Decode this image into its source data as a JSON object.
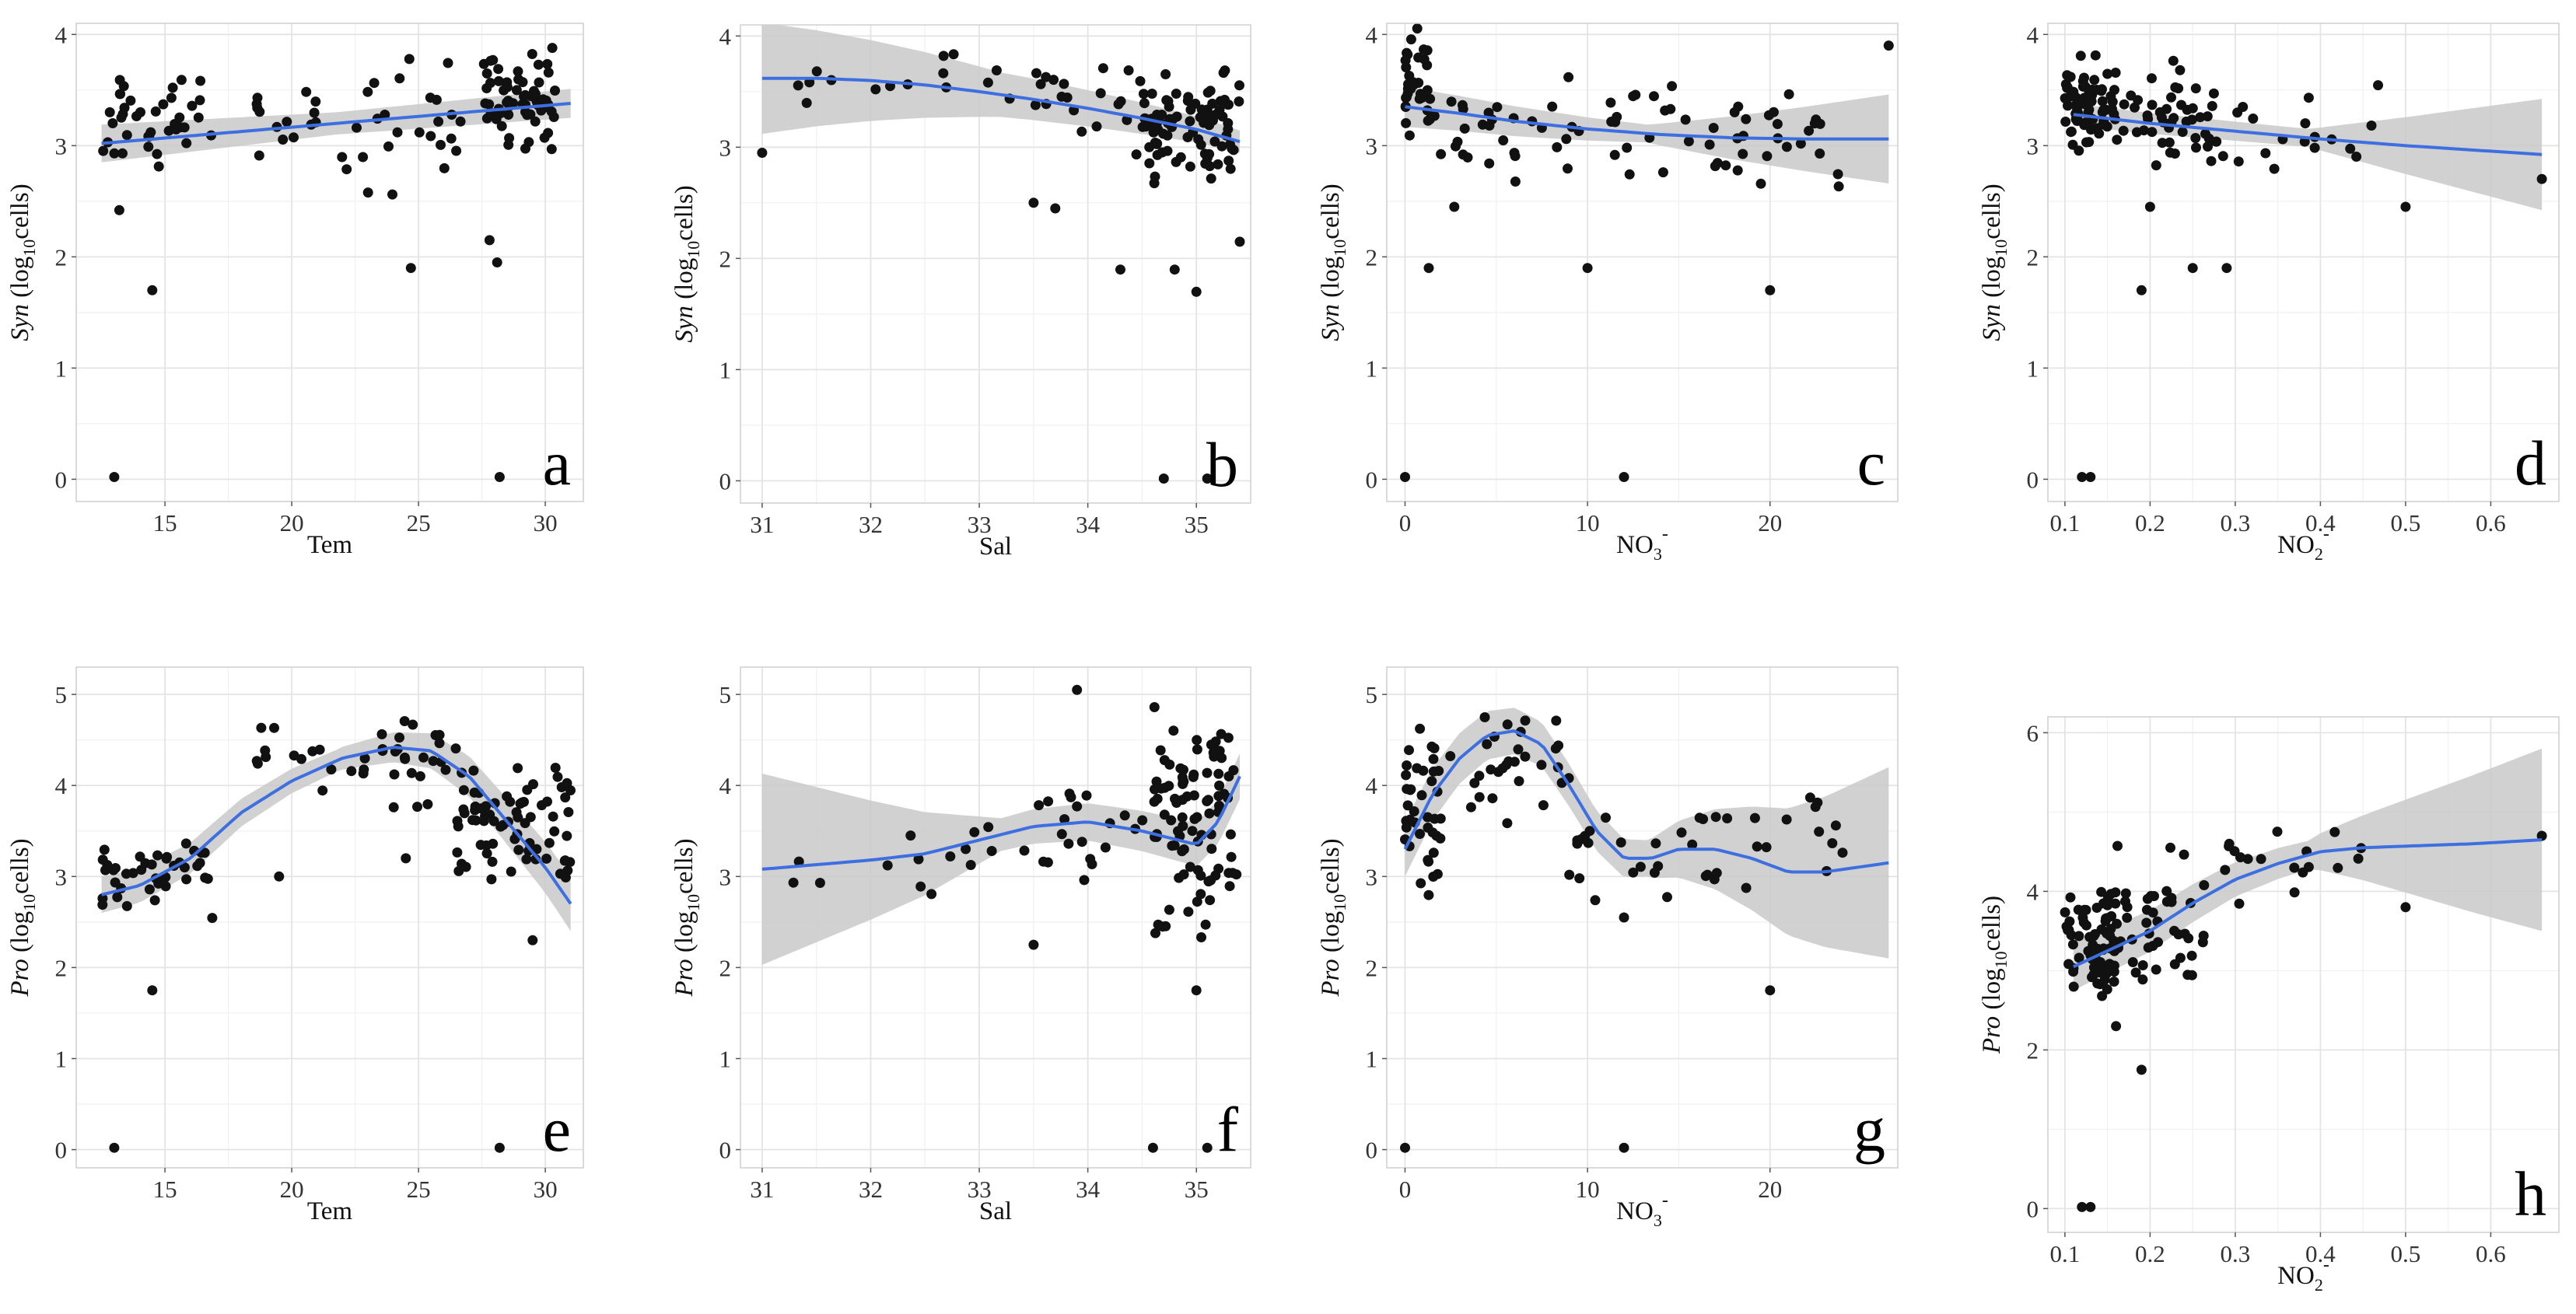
{
  "chart_data": [
    {
      "panel": "a",
      "type": "scatter",
      "letter": "a",
      "xlabel": "Tem",
      "ylabel_main": "Syn",
      "ylabel_rest": "(log",
      "ylabel_sub": "10",
      "ylabel_end": "cells)",
      "xlim": [
        11.5,
        31.5
      ],
      "ylim": [
        -0.2,
        4.1
      ],
      "xticks": [
        15,
        20,
        25,
        30
      ],
      "yticks": [
        0,
        1,
        2,
        3,
        4
      ],
      "fit_x": [
        12.5,
        31
      ],
      "fit_y": [
        3.02,
        3.38
      ],
      "band": [
        0.17,
        0.1,
        0.13
      ],
      "outliers": [
        [
          13,
          0.02
        ],
        [
          14.5,
          1.7
        ],
        [
          24.7,
          1.9
        ],
        [
          27.8,
          2.15
        ],
        [
          28.2,
          0.02
        ],
        [
          13.2,
          2.42
        ],
        [
          28.1,
          1.95
        ]
      ],
      "clusters": [
        [
          12.5,
          17,
          3.25,
          0.3,
          40
        ],
        [
          18.5,
          27,
          3.15,
          0.35,
          40
        ],
        [
          27.5,
          30.5,
          3.4,
          0.3,
          70
        ]
      ]
    },
    {
      "panel": "b",
      "type": "scatter",
      "letter": "b",
      "xlabel": "Sal",
      "ylabel_main": "Syn",
      "ylabel_rest": "(log",
      "ylabel_sub": "10",
      "ylabel_end": "cells)",
      "xlim": [
        30.8,
        35.5
      ],
      "ylim": [
        -0.2,
        4.1
      ],
      "xticks": [
        31,
        32,
        33,
        34,
        35
      ],
      "yticks": [
        0,
        1,
        2,
        3,
        4
      ],
      "fit_x": [
        31,
        31.5,
        32,
        32.5,
        33,
        33.5,
        34,
        34.5,
        35,
        35.4
      ],
      "fit_y": [
        3.62,
        3.62,
        3.6,
        3.56,
        3.5,
        3.43,
        3.35,
        3.26,
        3.16,
        3.05
      ],
      "band": [
        0.5,
        0.2,
        0.1,
        0.15
      ],
      "outliers": [
        [
          31,
          2.95
        ],
        [
          34.3,
          1.9
        ],
        [
          34.8,
          1.9
        ],
        [
          35,
          1.7
        ],
        [
          34.7,
          0.02
        ],
        [
          35.1,
          0.02
        ],
        [
          33.5,
          2.5
        ],
        [
          33.7,
          2.45
        ],
        [
          35.4,
          2.15
        ]
      ],
      "clusters": [
        [
          31.1,
          33.5,
          3.6,
          0.2,
          15
        ],
        [
          33.5,
          34.5,
          3.4,
          0.3,
          20
        ],
        [
          34.5,
          35.4,
          3.2,
          0.35,
          90
        ]
      ]
    },
    {
      "panel": "c",
      "type": "scatter",
      "letter": "c",
      "xlabel": "NO",
      "xlabel_sub": "3",
      "xlabel_sup": "-",
      "ylabel_main": "Syn",
      "ylabel_rest": "(log",
      "ylabel_sub": "10",
      "ylabel_end": "cells)",
      "xlim": [
        -1,
        27
      ],
      "ylim": [
        -0.2,
        4.1
      ],
      "xticks": [
        0,
        10,
        20
      ],
      "yticks": [
        0,
        1,
        2,
        3,
        4
      ],
      "fit_x": [
        0,
        3,
        6,
        10,
        14,
        18,
        22,
        26.5
      ],
      "fit_y": [
        3.35,
        3.29,
        3.22,
        3.15,
        3.1,
        3.07,
        3.06,
        3.06
      ],
      "band": [
        0.18,
        0.08,
        0.4
      ],
      "outliers": [
        [
          0,
          0.02
        ],
        [
          12,
          0.02
        ],
        [
          1.3,
          1.9
        ],
        [
          10,
          1.9
        ],
        [
          20,
          1.7
        ],
        [
          2.7,
          2.45
        ],
        [
          26.5,
          3.9
        ]
      ],
      "clusters": [
        [
          0,
          1.5,
          3.55,
          0.3,
          35
        ],
        [
          1.5,
          10,
          3.2,
          0.35,
          30
        ],
        [
          10,
          24,
          3.15,
          0.35,
          45
        ]
      ]
    },
    {
      "panel": "d",
      "type": "scatter",
      "letter": "d",
      "xlabel": "NO",
      "xlabel_sub": "2",
      "xlabel_sup": "-",
      "ylabel_main": "Syn",
      "ylabel_rest": "(log",
      "ylabel_sub": "10",
      "ylabel_end": "cells)",
      "xlim": [
        0.08,
        0.68
      ],
      "ylim": [
        -0.2,
        4.1
      ],
      "xticks": [
        0.1,
        0.2,
        0.3,
        0.4,
        0.5,
        0.6
      ],
      "yticks": [
        0,
        1,
        2,
        3,
        4
      ],
      "fit_x": [
        0.11,
        0.2,
        0.3,
        0.4,
        0.5,
        0.66
      ],
      "fit_y": [
        3.28,
        3.2,
        3.13,
        3.06,
        3.0,
        2.92
      ],
      "band": [
        0.1,
        0.08,
        0.5
      ],
      "outliers": [
        [
          0.12,
          0.02
        ],
        [
          0.13,
          0.02
        ],
        [
          0.19,
          1.7
        ],
        [
          0.25,
          1.9
        ],
        [
          0.29,
          1.9
        ],
        [
          0.66,
          2.7
        ],
        [
          0.5,
          2.45
        ],
        [
          0.2,
          2.45
        ]
      ],
      "clusters": [
        [
          0.1,
          0.16,
          3.35,
          0.3,
          70
        ],
        [
          0.16,
          0.28,
          3.25,
          0.35,
          50
        ],
        [
          0.28,
          0.48,
          3.1,
          0.35,
          18
        ]
      ]
    },
    {
      "panel": "e",
      "type": "scatter",
      "letter": "e",
      "xlabel": "Tem",
      "ylabel_main": "Pro",
      "ylabel_rest": "(log",
      "ylabel_sub": "10",
      "ylabel_end": "cells)",
      "xlim": [
        11.5,
        31.5
      ],
      "ylim": [
        -0.2,
        5.3
      ],
      "xticks": [
        15,
        20,
        25,
        30
      ],
      "yticks": [
        0,
        1,
        2,
        3,
        4,
        5
      ],
      "fit_x": [
        12.5,
        14,
        16,
        18,
        20,
        22,
        24,
        25.5,
        27,
        28.5,
        30,
        31
      ],
      "fit_y": [
        2.8,
        2.9,
        3.2,
        3.7,
        4.05,
        4.3,
        4.42,
        4.38,
        4.1,
        3.6,
        3.1,
        2.7
      ],
      "band": [
        0.2,
        0.12,
        0.3
      ],
      "outliers": [
        [
          13,
          0.02
        ],
        [
          28.2,
          0.02
        ],
        [
          14.5,
          1.75
        ],
        [
          29.5,
          2.3
        ],
        [
          24.5,
          3.2
        ],
        [
          19.5,
          3.0
        ]
      ],
      "clusters": [
        [
          12.5,
          17,
          3.0,
          0.3,
          40
        ],
        [
          18.5,
          26.5,
          4.3,
          0.35,
          40
        ],
        [
          26.5,
          31,
          3.6,
          0.5,
          75
        ]
      ]
    },
    {
      "panel": "f",
      "type": "scatter",
      "letter": "f",
      "xlabel": "Sal",
      "ylabel_main": "Pro",
      "ylabel_rest": "(log",
      "ylabel_sub": "10",
      "ylabel_end": "cells)",
      "xlim": [
        30.8,
        35.5
      ],
      "ylim": [
        -0.2,
        5.3
      ],
      "xticks": [
        31,
        32,
        33,
        34,
        35
      ],
      "yticks": [
        0,
        1,
        2,
        3,
        4,
        5
      ],
      "fit_x": [
        31,
        31.5,
        32,
        32.5,
        33,
        33.5,
        34,
        34.5,
        35,
        35.2,
        35.4
      ],
      "fit_y": [
        3.08,
        3.13,
        3.18,
        3.25,
        3.4,
        3.55,
        3.6,
        3.5,
        3.35,
        3.6,
        4.1
      ],
      "band": [
        1.05,
        0.18,
        0.25
      ],
      "outliers": [
        [
          34.6,
          0.02
        ],
        [
          35.1,
          0.02
        ],
        [
          35,
          1.75
        ],
        [
          33.5,
          2.25
        ],
        [
          33.9,
          5.05
        ]
      ],
      "clusters": [
        [
          31.1,
          33.5,
          3.3,
          0.3,
          15
        ],
        [
          33.5,
          34.6,
          3.5,
          0.35,
          20
        ],
        [
          34.6,
          35.4,
          3.6,
          0.8,
          95
        ]
      ]
    },
    {
      "panel": "g",
      "type": "scatter",
      "letter": "g",
      "xlabel": "NO",
      "xlabel_sub": "3",
      "xlabel_sup": "-",
      "ylabel_main": "Pro",
      "ylabel_rest": "(log",
      "ylabel_sub": "10",
      "ylabel_end": "cells)",
      "xlim": [
        -1,
        27
      ],
      "ylim": [
        -0.2,
        5.3
      ],
      "xticks": [
        0,
        10,
        20
      ],
      "yticks": [
        0,
        1,
        2,
        3,
        4,
        5
      ],
      "fit_x": [
        0,
        1.5,
        3,
        4.5,
        6,
        7.5,
        9,
        10.5,
        12,
        13.5,
        15,
        17,
        19,
        21,
        23,
        26.5
      ],
      "fit_y": [
        3.3,
        3.9,
        4.3,
        4.55,
        4.6,
        4.45,
        4.0,
        3.5,
        3.2,
        3.2,
        3.3,
        3.3,
        3.2,
        3.05,
        3.05,
        3.15
      ],
      "band": [
        0.3,
        0.2,
        1.05
      ],
      "outliers": [
        [
          0,
          0.02
        ],
        [
          12,
          0.02
        ],
        [
          20,
          1.75
        ],
        [
          12,
          2.55
        ]
      ],
      "clusters": [
        [
          0,
          2,
          3.6,
          0.6,
          40
        ],
        [
          2,
          9,
          4.3,
          0.45,
          30
        ],
        [
          9,
          24,
          3.3,
          0.45,
          40
        ]
      ]
    },
    {
      "panel": "h",
      "type": "scatter",
      "letter": "h",
      "xlabel": "NO",
      "xlabel_sub": "2",
      "xlabel_sup": "-",
      "ylabel_main": "Pro",
      "ylabel_rest": "(log",
      "ylabel_sub": "10",
      "ylabel_end": "cells)",
      "xlim": [
        0.08,
        0.68
      ],
      "ylim": [
        -0.3,
        6.2
      ],
      "xticks": [
        0.1,
        0.2,
        0.3,
        0.4,
        0.5,
        0.6
      ],
      "yticks": [
        0,
        2,
        4,
        6
      ],
      "fit_x": [
        0.11,
        0.15,
        0.2,
        0.25,
        0.3,
        0.35,
        0.4,
        0.45,
        0.5,
        0.58,
        0.66
      ],
      "fit_y": [
        3.05,
        3.25,
        3.5,
        3.85,
        4.15,
        4.35,
        4.5,
        4.55,
        4.57,
        4.6,
        4.65
      ],
      "band": [
        0.3,
        0.18,
        1.15
      ],
      "outliers": [
        [
          0.12,
          0.02
        ],
        [
          0.13,
          0.02
        ],
        [
          0.19,
          1.75
        ],
        [
          0.16,
          2.3
        ],
        [
          0.5,
          3.8
        ],
        [
          0.66,
          4.7
        ]
      ],
      "clusters": [
        [
          0.1,
          0.16,
          3.4,
          0.55,
          70
        ],
        [
          0.16,
          0.27,
          3.6,
          0.75,
          45
        ],
        [
          0.27,
          0.45,
          4.4,
          0.35,
          18
        ]
      ]
    }
  ]
}
